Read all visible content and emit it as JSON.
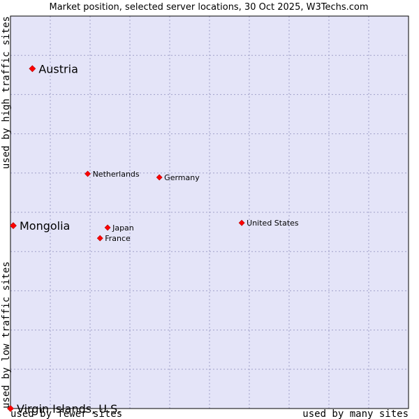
{
  "chart_data": {
    "type": "scatter",
    "title": "Market position, selected server locations, 30 Oct 2025, W3Techs.com",
    "xlabel_low": "used by fewer sites",
    "xlabel_high": "used by many sites",
    "ylabel_low": "used by low traffic sites",
    "ylabel_high": "used by high traffic sites",
    "xlim": [
      0,
      100
    ],
    "ylim": [
      0,
      100
    ],
    "grid": true,
    "colors": {
      "plot_bg": "#e4e4f8",
      "grid": "#a0a0c8",
      "border": "#000000",
      "point": "#ff0000"
    },
    "points": [
      {
        "name": "Austria",
        "x": 5.5,
        "y": 86.6,
        "size": "large"
      },
      {
        "name": "Netherlands",
        "x": 19.4,
        "y": 59.8,
        "size": "small"
      },
      {
        "name": "Germany",
        "x": 37.4,
        "y": 58.9,
        "size": "small"
      },
      {
        "name": "Mongolia",
        "x": 0.7,
        "y": 46.6,
        "size": "large"
      },
      {
        "name": "United States",
        "x": 58.1,
        "y": 47.3,
        "size": "small"
      },
      {
        "name": "Japan",
        "x": 24.4,
        "y": 46.1,
        "size": "small"
      },
      {
        "name": "France",
        "x": 22.5,
        "y": 43.4,
        "size": "small"
      },
      {
        "name": "Virgin Islands, U.S.",
        "x": 0.0,
        "y": 0.0,
        "size": "large"
      }
    ]
  }
}
